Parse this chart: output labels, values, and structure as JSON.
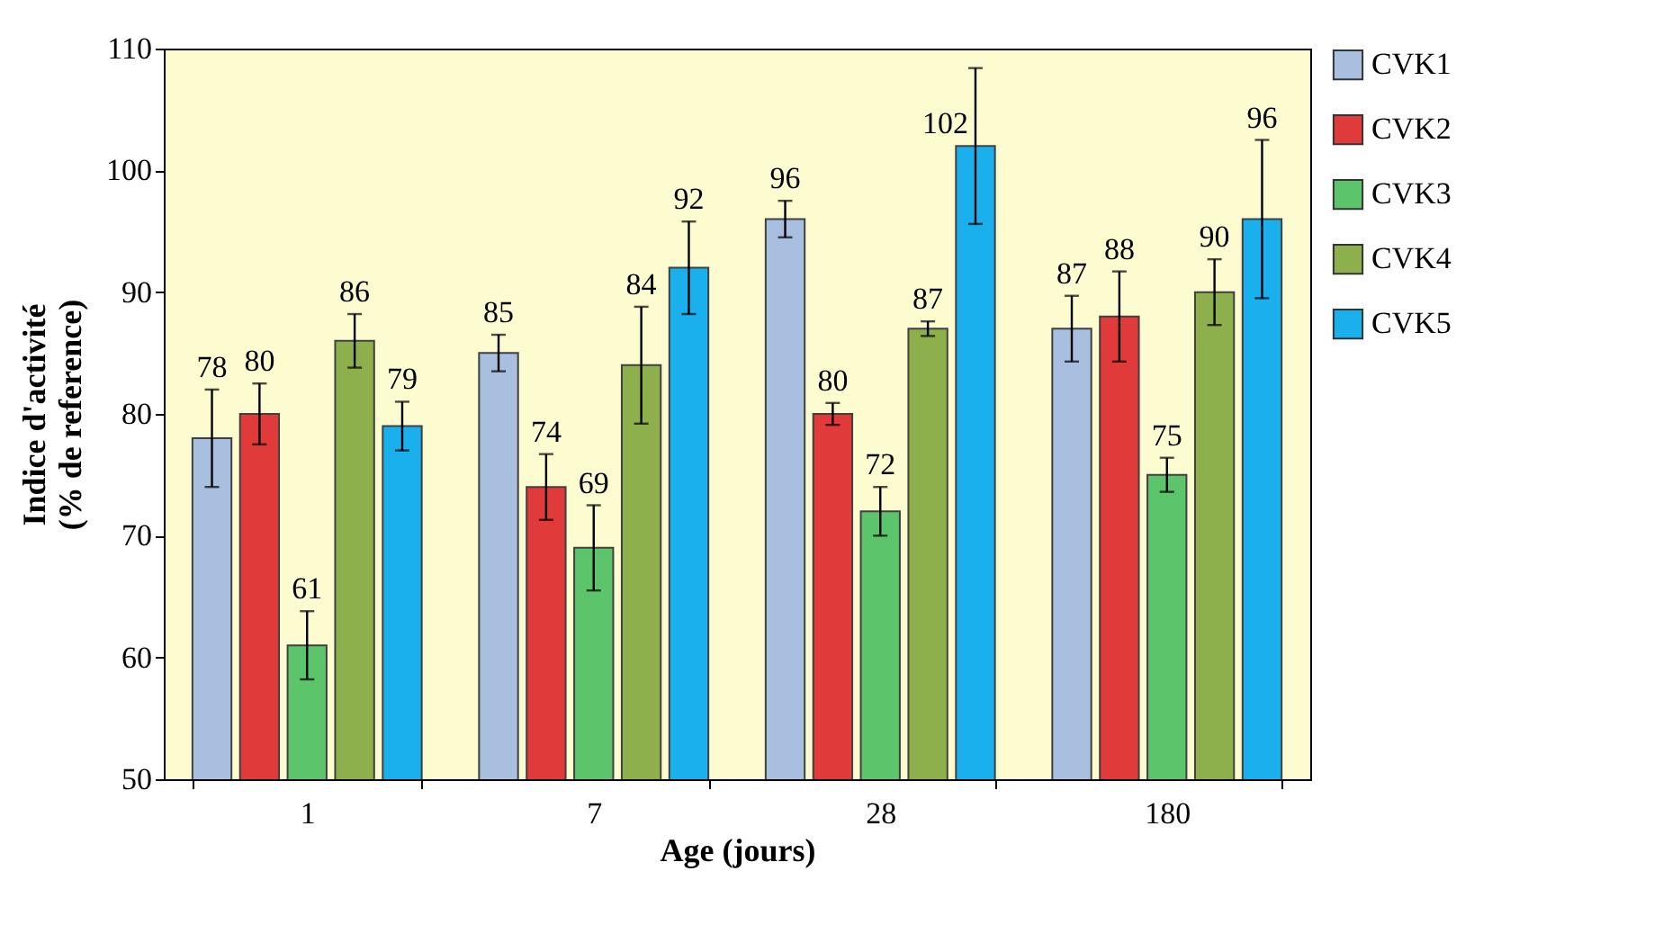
{
  "chart_data": {
    "type": "bar",
    "xlabel": "Age (jours)",
    "ylabel": "Indice d'activité\n(% de reference)",
    "categories": [
      "1",
      "7",
      "28",
      "180"
    ],
    "series": [
      {
        "name": "CVK1",
        "color": "#a9bfe0",
        "values": [
          78,
          85,
          96,
          87
        ],
        "errors": [
          4,
          1.5,
          1.5,
          2.7
        ]
      },
      {
        "name": "CVK2",
        "color": "#e03a3a",
        "values": [
          80,
          74,
          80,
          88
        ],
        "errors": [
          2.5,
          2.7,
          0.9,
          3.7
        ]
      },
      {
        "name": "CVK3",
        "color": "#5cc46a",
        "values": [
          61,
          69,
          72,
          75
        ],
        "errors": [
          2.8,
          3.5,
          2,
          1.4
        ]
      },
      {
        "name": "CVK4",
        "color": "#8db04c",
        "values": [
          86,
          84,
          87,
          90
        ],
        "errors": [
          2.2,
          4.8,
          0.6,
          2.7
        ]
      },
      {
        "name": "CVK5",
        "color": "#1ab0ee",
        "values": [
          79,
          92,
          102,
          96
        ],
        "errors": [
          2,
          3.8,
          6.4,
          6.5
        ]
      }
    ],
    "ylim": [
      50,
      110
    ],
    "yticks": [
      50,
      60,
      70,
      80,
      90,
      100,
      110
    ],
    "grid": false,
    "legend": "right",
    "data_labels": true
  }
}
